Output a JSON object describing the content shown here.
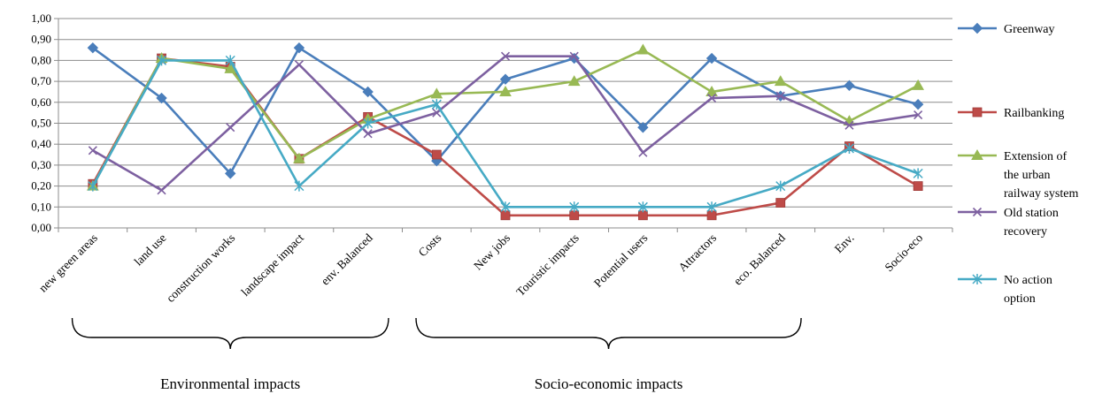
{
  "chart_data": {
    "type": "line",
    "title": "",
    "xlabel": "",
    "ylabel": "",
    "ylim": [
      0,
      1
    ],
    "y_ticks": [
      "0,00",
      "0,10",
      "0,20",
      "0,30",
      "0,40",
      "0,50",
      "0,60",
      "0,70",
      "0,80",
      "0,90",
      "1,00"
    ],
    "grid": true,
    "legend_position": "right",
    "categories": [
      "new green areas",
      "land use",
      "construction works",
      "landscape impact",
      "env. Balanced",
      "Costs",
      "New jobs",
      "Touristic impacts",
      "Potential users",
      "Attractors",
      "eco. Balanced",
      "Env.",
      "Socio-eco"
    ],
    "series": [
      {
        "name": "Greenway",
        "legend_lines": [
          "Greenway"
        ],
        "color": "#4a7ebb",
        "marker": "diamond",
        "values": [
          0.86,
          0.62,
          0.26,
          0.86,
          0.65,
          0.32,
          0.71,
          0.81,
          0.48,
          0.81,
          0.63,
          0.68,
          0.59
        ]
      },
      {
        "name": "Railbanking",
        "legend_lines": [
          "Railbanking"
        ],
        "color": "#be4b48",
        "marker": "square",
        "values": [
          0.21,
          0.81,
          0.77,
          0.33,
          0.53,
          0.35,
          0.06,
          0.06,
          0.06,
          0.06,
          0.12,
          0.39,
          0.2
        ]
      },
      {
        "name": "Extension of the urban railway system",
        "legend_lines": [
          "Extension of",
          "the urban",
          "railway system"
        ],
        "color": "#98b954",
        "marker": "triangle",
        "values": [
          0.2,
          0.81,
          0.76,
          0.33,
          0.52,
          0.64,
          0.65,
          0.7,
          0.85,
          0.65,
          0.7,
          0.51,
          0.68
        ]
      },
      {
        "name": "Old station recovery",
        "legend_lines": [
          "Old station",
          "recovery"
        ],
        "color": "#7d60a0",
        "marker": "x",
        "values": [
          0.37,
          0.18,
          0.48,
          0.78,
          0.45,
          0.55,
          0.82,
          0.82,
          0.36,
          0.62,
          0.63,
          0.49,
          0.54
        ]
      },
      {
        "name": "No action option",
        "legend_lines": [
          "No action",
          "option"
        ],
        "color": "#46aac5",
        "marker": "star",
        "values": [
          0.2,
          0.8,
          0.8,
          0.2,
          0.5,
          0.59,
          0.1,
          0.1,
          0.1,
          0.1,
          0.2,
          0.38,
          0.26
        ]
      }
    ],
    "groups": [
      {
        "label": "Environmental impacts",
        "from": 0,
        "to": 4
      },
      {
        "label": "Socio-economic impacts",
        "from": 5,
        "to": 10
      }
    ]
  }
}
